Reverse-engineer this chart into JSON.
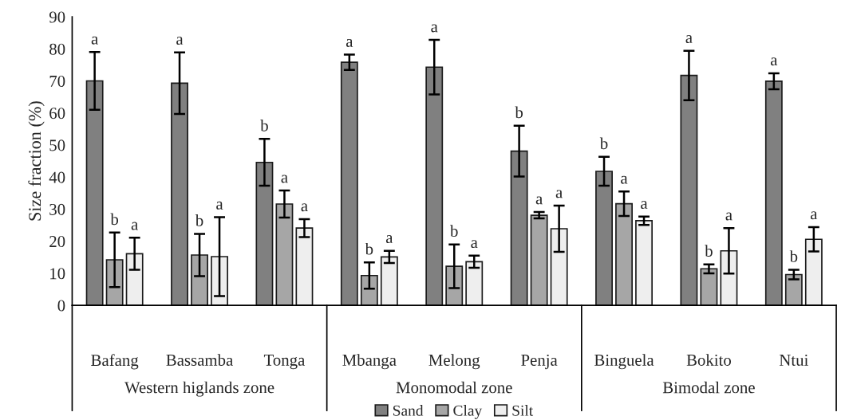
{
  "chart_data": {
    "type": "bar",
    "ylabel": "Size fraction (%)",
    "categories": [
      "Bafang",
      "Bassamba",
      "Tonga",
      "Mbanga",
      "Melong",
      "Penja",
      "Binguela",
      "Bokito",
      "Ntui"
    ],
    "series": [
      {
        "name": "Sand",
        "color": "#808080",
        "values": [
          70,
          69.3,
          44.6,
          75.8,
          74.3,
          48.1,
          41.8,
          71.7,
          69.9
        ],
        "errors": [
          9,
          9.6,
          7.3,
          2.4,
          8.5,
          7.9,
          4.5,
          7.7,
          2.5
        ],
        "value_labels": [
          "a",
          "a",
          "b",
          "a",
          "a",
          "b",
          "b",
          "a",
          "a"
        ]
      },
      {
        "name": "Clay",
        "color": "#a6a6a6",
        "values": [
          14.2,
          15.7,
          31.6,
          9.3,
          12.2,
          28.1,
          31.7,
          11.4,
          9.6
        ],
        "errors": [
          8.5,
          6.6,
          4.2,
          4.1,
          6.8,
          1.0,
          3.8,
          1.4,
          1.5
        ],
        "value_labels": [
          "b",
          "b",
          "a",
          "b",
          "b",
          "a",
          "a",
          "b",
          "b"
        ]
      },
      {
        "name": "Silt",
        "color": "#eeeeee",
        "values": [
          16.1,
          15.2,
          24.1,
          15.1,
          13.6,
          23.9,
          26.4,
          17.0,
          20.6
        ],
        "errors": [
          5,
          12.3,
          2.8,
          1.9,
          1.9,
          7.2,
          1.3,
          7.1,
          3.8
        ],
        "value_labels": [
          "a",
          "a",
          "a",
          "a",
          "a",
          "a",
          "a",
          "a",
          "a"
        ]
      }
    ],
    "ylim": [
      0,
      90
    ],
    "yticks": [
      0,
      10,
      20,
      30,
      40,
      50,
      60,
      70,
      80,
      90
    ],
    "annotations": [
      "Western higlands zone",
      "Monomodal zone",
      "Bimodal zone"
    ],
    "grid": false,
    "legend": "bottom"
  }
}
